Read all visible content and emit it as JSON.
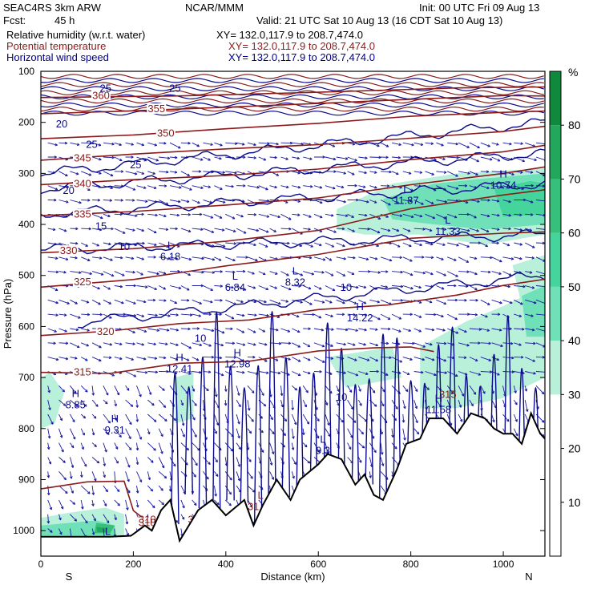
{
  "header": {
    "model": "SEAC4RS  3km ARW",
    "org": "NCAR/MMM",
    "init": "Init: 00 UTC Fri 09 Aug 13",
    "fcst_label": "Fcst:",
    "fcst_value": "45 h",
    "valid": "Valid: 21 UTC Sat 10 Aug 13 (16 CDT Sat 10 Aug 13)",
    "fields": [
      {
        "name": "Relative humidity (w.r.t. water)",
        "xy": "XY= 132.0,117.9 to 208.7,474.0",
        "color": "#000000"
      },
      {
        "name": "Potential temperature",
        "xy": "XY= 132.0,117.9 to 208.7,474.0",
        "color": "#8b1a1a"
      },
      {
        "name": "Horizontal wind speed",
        "xy": "XY= 132.0,117.9 to 208.7,474.0",
        "color": "#00008b"
      }
    ]
  },
  "chart_data": {
    "type": "heatmap",
    "xlabel": "Distance (km)",
    "ylabel": "Pressure (hPa)",
    "xlim": [
      0,
      1090
    ],
    "ylim": [
      1050,
      100
    ],
    "x_ticks": [
      0,
      200,
      400,
      600,
      800,
      1000
    ],
    "x_tick_labels": [
      "0",
      "200",
      "400",
      "600",
      "800",
      "1000"
    ],
    "y_ticks": [
      100,
      200,
      300,
      400,
      500,
      600,
      700,
      800,
      900,
      1000
    ],
    "y_tick_labels": [
      "100",
      "200",
      "300",
      "400",
      "500",
      "600",
      "700",
      "800",
      "900",
      "1000"
    ],
    "end_labels": {
      "left": "S",
      "right": "N"
    },
    "colorbar": {
      "unit": "%",
      "ticks": [
        10,
        20,
        30,
        40,
        50,
        60,
        70,
        80
      ],
      "tick_labels": [
        "10",
        "20",
        "30",
        "40",
        "50",
        "60",
        "70",
        "80"
      ],
      "range": [
        0,
        90
      ],
      "bands": [
        {
          "from": 30,
          "to": 40,
          "color": "#b8f0da"
        },
        {
          "from": 40,
          "to": 50,
          "color": "#6fe0b8"
        },
        {
          "from": 50,
          "to": 60,
          "color": "#44d49c"
        },
        {
          "from": 60,
          "to": 70,
          "color": "#36c07a"
        },
        {
          "from": 70,
          "to": 80,
          "color": "#22a85c"
        },
        {
          "from": 80,
          "to": 90,
          "color": "#0f8a3c"
        }
      ]
    },
    "rh_regions": [
      {
        "level": 30,
        "points": [
          [
            0,
            700
          ],
          [
            20,
            690
          ],
          [
            50,
            730
          ],
          [
            30,
            790
          ],
          [
            0,
            800
          ]
        ]
      },
      {
        "level": 30,
        "points": [
          [
            290,
            700
          ],
          [
            330,
            690
          ],
          [
            330,
            780
          ],
          [
            290,
            790
          ]
        ]
      },
      {
        "level": 30,
        "points": [
          [
            620,
            660
          ],
          [
            760,
            640
          ],
          [
            780,
            700
          ],
          [
            660,
            720
          ]
        ]
      },
      {
        "level": 30,
        "points": [
          [
            820,
            640
          ],
          [
            920,
            590
          ],
          [
            1000,
            560
          ],
          [
            1090,
            520
          ],
          [
            1090,
            700
          ],
          [
            1000,
            740
          ],
          [
            900,
            760
          ],
          [
            820,
            760
          ]
        ]
      },
      {
        "level": 30,
        "points": [
          [
            640,
            370
          ],
          [
            760,
            320
          ],
          [
            900,
            300
          ],
          [
            1090,
            290
          ],
          [
            1090,
            420
          ],
          [
            960,
            440
          ],
          [
            820,
            420
          ],
          [
            700,
            420
          ],
          [
            640,
            410
          ]
        ]
      },
      {
        "level": 30,
        "points": [
          [
            1020,
            480
          ],
          [
            1090,
            460
          ],
          [
            1090,
            560
          ],
          [
            1040,
            560
          ]
        ]
      },
      {
        "level": 30,
        "points": [
          [
            0,
            975
          ],
          [
            60,
            965
          ],
          [
            140,
            955
          ],
          [
            180,
            968
          ],
          [
            180,
            1015
          ],
          [
            0,
            1015
          ]
        ]
      },
      {
        "level": 40,
        "points": [
          [
            740,
            350
          ],
          [
            850,
            320
          ],
          [
            960,
            310
          ],
          [
            1090,
            300
          ],
          [
            1090,
            400
          ],
          [
            960,
            410
          ],
          [
            850,
            400
          ],
          [
            760,
            390
          ]
        ]
      },
      {
        "level": 40,
        "points": [
          [
            1040,
            540
          ],
          [
            1090,
            520
          ],
          [
            1090,
            620
          ],
          [
            1050,
            620
          ]
        ]
      },
      {
        "level": 40,
        "points": [
          [
            0,
            990
          ],
          [
            60,
            985
          ],
          [
            120,
            980
          ],
          [
            160,
            990
          ],
          [
            160,
            1010
          ],
          [
            0,
            1010
          ]
        ]
      },
      {
        "level": 50,
        "points": [
          [
            980,
            330
          ],
          [
            1060,
            315
          ],
          [
            1090,
            320
          ],
          [
            1090,
            380
          ],
          [
            1000,
            385
          ]
        ]
      },
      {
        "level": 60,
        "points": [
          [
            120,
            985
          ],
          [
            160,
            990
          ],
          [
            150,
            1005
          ],
          [
            115,
            1005
          ]
        ]
      },
      {
        "level": 70,
        "points": [
          [
            120,
            993
          ],
          [
            145,
            995
          ],
          [
            140,
            1003
          ],
          [
            122,
            1003
          ]
        ]
      }
    ],
    "theta_isentropes": [
      {
        "label": "315",
        "label_x": 90,
        "points": [
          [
            0,
            690
          ],
          [
            150,
            690
          ],
          [
            300,
            675
          ],
          [
            450,
            665
          ],
          [
            600,
            650
          ],
          [
            720,
            645
          ],
          [
            800,
            640
          ],
          [
            850,
            650
          ]
        ]
      },
      {
        "label": "320",
        "label_x": 140,
        "points": [
          [
            0,
            615
          ],
          [
            150,
            610
          ],
          [
            300,
            595
          ],
          [
            450,
            585
          ],
          [
            600,
            570
          ],
          [
            750,
            555
          ],
          [
            900,
            540
          ],
          [
            1000,
            520
          ],
          [
            1090,
            505
          ]
        ]
      },
      {
        "label": "325",
        "label_x": 90,
        "points": [
          [
            0,
            520
          ],
          [
            200,
            505
          ],
          [
            400,
            480
          ],
          [
            600,
            460
          ],
          [
            800,
            430
          ],
          [
            1000,
            420
          ],
          [
            1090,
            415
          ]
        ]
      },
      {
        "label": "330",
        "label_x": 60,
        "points": [
          [
            0,
            455
          ],
          [
            200,
            445
          ],
          [
            400,
            430
          ],
          [
            600,
            410
          ],
          [
            800,
            370
          ],
          [
            1000,
            345
          ],
          [
            1090,
            335
          ]
        ]
      },
      {
        "label": "335",
        "label_x": 90,
        "points": [
          [
            0,
            385
          ],
          [
            200,
            375
          ],
          [
            400,
            360
          ],
          [
            600,
            345
          ],
          [
            800,
            320
          ],
          [
            1000,
            300
          ],
          [
            1090,
            290
          ]
        ]
      },
      {
        "label": "340",
        "label_x": 90,
        "points": [
          [
            0,
            325
          ],
          [
            200,
            315
          ],
          [
            400,
            305
          ],
          [
            600,
            290
          ],
          [
            800,
            270
          ],
          [
            1000,
            255
          ],
          [
            1090,
            245
          ]
        ]
      },
      {
        "label": "345",
        "label_x": 90,
        "points": [
          [
            0,
            275
          ],
          [
            200,
            265
          ],
          [
            400,
            255
          ],
          [
            600,
            245
          ],
          [
            800,
            230
          ],
          [
            1000,
            215
          ],
          [
            1090,
            205
          ]
        ]
      },
      {
        "label": "350",
        "label_x": 270,
        "points": [
          [
            0,
            230
          ],
          [
            200,
            225
          ],
          [
            400,
            215
          ],
          [
            600,
            205
          ],
          [
            800,
            190
          ],
          [
            1000,
            180
          ],
          [
            1090,
            175
          ]
        ]
      },
      {
        "label": "355",
        "label_x": 250,
        "points": [
          [
            0,
            180
          ],
          [
            200,
            175
          ],
          [
            400,
            170
          ],
          [
            600,
            165
          ],
          [
            800,
            158
          ],
          [
            1000,
            150
          ],
          [
            1090,
            148
          ]
        ]
      },
      {
        "label": "360",
        "label_x": 130,
        "points": [
          [
            0,
            150
          ],
          [
            300,
            145
          ],
          [
            600,
            140
          ],
          [
            900,
            135
          ],
          [
            1090,
            133
          ]
        ]
      },
      {
        "label": "310",
        "label_x": 230,
        "points": [
          [
            0,
            920
          ],
          [
            100,
            905
          ],
          [
            180,
            900
          ],
          [
            200,
            960
          ],
          [
            230,
            985
          ]
        ]
      }
    ],
    "wind_labels": [
      {
        "text": "25",
        "x": 140,
        "p": 140
      },
      {
        "text": "25",
        "x": 290,
        "p": 140
      },
      {
        "text": "20",
        "x": 45,
        "p": 210
      },
      {
        "text": "25",
        "x": 110,
        "p": 250
      },
      {
        "text": "25",
        "x": 205,
        "p": 290
      },
      {
        "text": "20",
        "x": 60,
        "p": 340
      },
      {
        "text": "15",
        "x": 130,
        "p": 410
      },
      {
        "text": "10",
        "x": 180,
        "p": 450
      },
      {
        "text": "10",
        "x": 345,
        "p": 630
      },
      {
        "text": "10",
        "x": 660,
        "p": 530
      },
      {
        "text": "10",
        "x": 650,
        "p": 745
      }
    ],
    "extrema": [
      {
        "kind": "L",
        "value": "6.18",
        "x": 280,
        "p": 470
      },
      {
        "kind": "L",
        "value": "6.84",
        "x": 420,
        "p": 530
      },
      {
        "kind": "L",
        "value": "8.32",
        "x": 550,
        "p": 520
      },
      {
        "kind": "H",
        "value": "14.22",
        "x": 690,
        "p": 590
      },
      {
        "kind": "H",
        "value": "12.41",
        "x": 300,
        "p": 690
      },
      {
        "kind": "H",
        "value": "12.98",
        "x": 425,
        "p": 680
      },
      {
        "kind": "H",
        "value": "8.85",
        "x": 75,
        "p": 760
      },
      {
        "kind": "H",
        "value": "9.31",
        "x": 160,
        "p": 810
      },
      {
        "kind": "H",
        "value": "11.58",
        "x": 860,
        "p": 770
      },
      {
        "kind": "L",
        "value": "11.87",
        "x": 790,
        "p": 360
      },
      {
        "kind": "L",
        "value": "11.33",
        "x": 880,
        "p": 420
      },
      {
        "kind": "H",
        "value": "10.74",
        "x": 1000,
        "p": 330
      },
      {
        "kind": "L",
        "value": "9.3",
        "x": 610,
        "p": 850
      },
      {
        "kind": "L",
        "value": "31.4",
        "x": 690,
        "p": 940
      },
      {
        "kind": "L",
        "value": "31.24",
        "x": 475,
        "p": 960
      },
      {
        "kind": "",
        "value": "31.5",
        "x": 340,
        "p": 985
      },
      {
        "kind": "",
        "value": "310",
        "x": 230,
        "p": 985
      },
      {
        "kind": "",
        "value": "8.82",
        "x": 230,
        "p": 1010
      },
      {
        "kind": "L",
        "value": "4.51",
        "x": 145,
        "p": 1030
      },
      {
        "kind": "",
        "value": "315",
        "x": 880,
        "p": 740
      }
    ],
    "terrain": [
      [
        0,
        1012
      ],
      [
        150,
        1012
      ],
      [
        195,
        1010
      ],
      [
        210,
        1000
      ],
      [
        225,
        990
      ],
      [
        240,
        1000
      ],
      [
        260,
        960
      ],
      [
        280,
        940
      ],
      [
        300,
        1020
      ],
      [
        340,
        960
      ],
      [
        370,
        940
      ],
      [
        400,
        970
      ],
      [
        440,
        940
      ],
      [
        460,
        990
      ],
      [
        480,
        950
      ],
      [
        510,
        900
      ],
      [
        540,
        940
      ],
      [
        560,
        900
      ],
      [
        600,
        870
      ],
      [
        620,
        850
      ],
      [
        650,
        860
      ],
      [
        680,
        910
      ],
      [
        700,
        890
      ],
      [
        720,
        930
      ],
      [
        740,
        940
      ],
      [
        770,
        880
      ],
      [
        790,
        830
      ],
      [
        820,
        820
      ],
      [
        840,
        780
      ],
      [
        870,
        780
      ],
      [
        900,
        810
      ],
      [
        930,
        770
      ],
      [
        960,
        780
      ],
      [
        980,
        800
      ],
      [
        1000,
        810
      ],
      [
        1020,
        810
      ],
      [
        1040,
        830
      ],
      [
        1060,
        770
      ],
      [
        1080,
        810
      ],
      [
        1090,
        820
      ]
    ]
  }
}
